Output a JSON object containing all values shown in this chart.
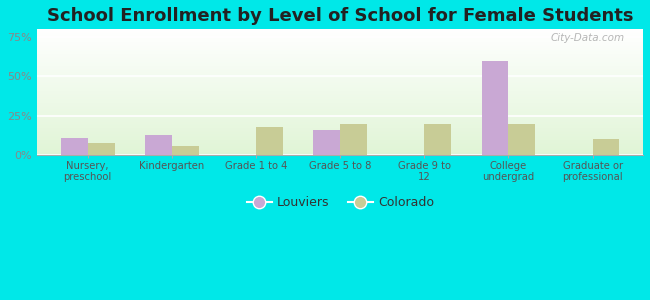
{
  "title": "School Enrollment by Level of School for Female Students",
  "categories": [
    "Nursery,\npreschool",
    "Kindergarten",
    "Grade 1 to 4",
    "Grade 5 to 8",
    "Grade 9 to\n12",
    "College\nundergrad",
    "Graduate or\nprofessional"
  ],
  "louviers": [
    11,
    13,
    0,
    16,
    0,
    60,
    0
  ],
  "colorado": [
    8,
    6,
    18,
    20,
    20,
    20,
    10
  ],
  "louviers_color": "#c9a8d4",
  "colorado_color": "#c8cc96",
  "bar_width": 0.32,
  "ylim": [
    0,
    80
  ],
  "yticks": [
    0,
    25,
    50,
    75
  ],
  "ytick_labels": [
    "0%",
    "25%",
    "50%",
    "75%"
  ],
  "background_color": "#00e8e8",
  "title_fontsize": 13,
  "legend_labels": [
    "Louviers",
    "Colorado"
  ],
  "watermark": "City-Data.com",
  "ytick_color": "#888888",
  "xtick_color": "#555555"
}
